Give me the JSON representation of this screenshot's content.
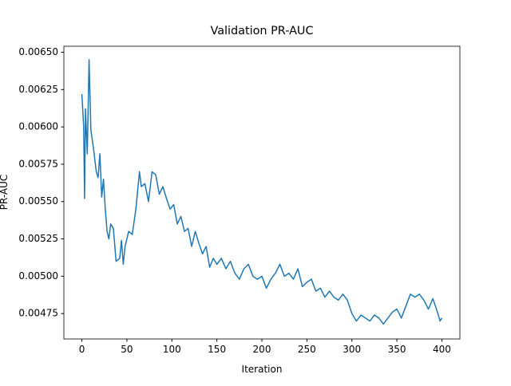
{
  "chart_data": {
    "type": "line",
    "title": "Validation PR-AUC",
    "x_label": "Iteration",
    "y_label": "PR-AUC",
    "x": [
      0,
      2,
      3,
      4,
      6,
      8,
      10,
      13,
      16,
      18,
      20,
      22,
      24,
      26,
      28,
      30,
      32,
      35,
      38,
      42,
      44,
      46,
      48,
      52,
      56,
      60,
      64,
      66,
      70,
      74,
      78,
      82,
      86,
      90,
      94,
      98,
      102,
      106,
      110,
      114,
      118,
      122,
      126,
      130,
      134,
      138,
      142,
      146,
      150,
      155,
      160,
      165,
      170,
      175,
      180,
      185,
      190,
      195,
      200,
      205,
      210,
      215,
      220,
      225,
      230,
      235,
      240,
      245,
      250,
      255,
      260,
      265,
      270,
      275,
      280,
      285,
      290,
      295,
      300,
      305,
      310,
      315,
      320,
      325,
      330,
      335,
      340,
      345,
      350,
      355,
      360,
      365,
      370,
      375,
      380,
      385,
      390,
      395,
      398,
      400
    ],
    "series": [
      {
        "name": "PR-AUC",
        "color": "#1f77b4",
        "values": [
          0.00622,
          0.006,
          0.00552,
          0.00612,
          0.00582,
          0.00645,
          0.00598,
          0.00585,
          0.0057,
          0.00566,
          0.00582,
          0.00553,
          0.00565,
          0.00545,
          0.0053,
          0.00525,
          0.00535,
          0.00532,
          0.0051,
          0.00512,
          0.00524,
          0.00508,
          0.0052,
          0.0053,
          0.00528,
          0.00545,
          0.0057,
          0.0056,
          0.00562,
          0.0055,
          0.0057,
          0.00568,
          0.00555,
          0.0056,
          0.00552,
          0.00545,
          0.00548,
          0.00535,
          0.0054,
          0.0053,
          0.00532,
          0.0052,
          0.0053,
          0.00522,
          0.00515,
          0.0052,
          0.00506,
          0.00512,
          0.00508,
          0.00512,
          0.00505,
          0.0051,
          0.00502,
          0.00498,
          0.00505,
          0.00508,
          0.005,
          0.00498,
          0.005,
          0.00492,
          0.00498,
          0.00502,
          0.00508,
          0.005,
          0.00502,
          0.00498,
          0.00505,
          0.00493,
          0.00496,
          0.00498,
          0.0049,
          0.00492,
          0.00486,
          0.0049,
          0.00486,
          0.00484,
          0.00488,
          0.00484,
          0.00475,
          0.0047,
          0.00474,
          0.00472,
          0.0047,
          0.00474,
          0.00472,
          0.00468,
          0.00472,
          0.00476,
          0.00478,
          0.00472,
          0.0048,
          0.00488,
          0.00486,
          0.00488,
          0.00484,
          0.00478,
          0.00485,
          0.00476,
          0.0047,
          0.00472
        ]
      }
    ],
    "xlim": [
      -20,
      420
    ],
    "xticks": [
      0,
      50,
      100,
      150,
      200,
      250,
      300,
      350,
      400
    ],
    "ylim": [
      0.00458,
      0.00654
    ],
    "yticks": [
      {
        "value": 0.00475,
        "label": "0.00475"
      },
      {
        "value": 0.005,
        "label": "0.00500"
      },
      {
        "value": 0.00525,
        "label": "0.00525"
      },
      {
        "value": 0.0055,
        "label": "0.00550"
      },
      {
        "value": 0.00575,
        "label": "0.00575"
      },
      {
        "value": 0.006,
        "label": "0.00600"
      },
      {
        "value": 0.00625,
        "label": "0.00625"
      },
      {
        "value": 0.0065,
        "label": "0.00650"
      }
    ],
    "grid": false
  }
}
